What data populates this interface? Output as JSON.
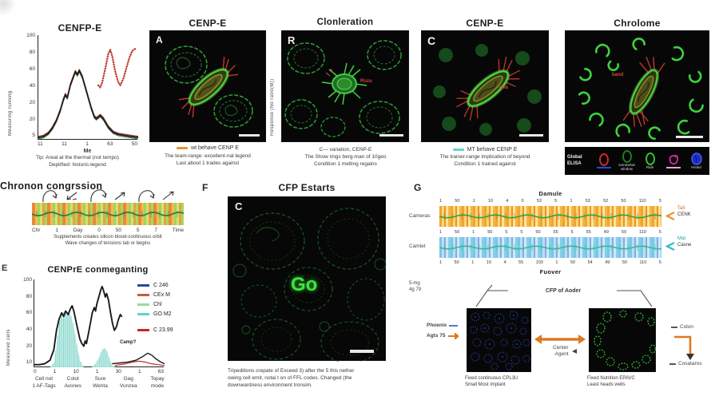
{
  "colors": {
    "panel_black": "#070707",
    "green_bright": "#3ed43e",
    "green_dim": "#1d7a2a",
    "red": "#c0392b",
    "orange_accent": "#e8952e",
    "cyan_accent": "#5fd8cc",
    "dapi_blue": "#2b4fd4",
    "arrow_orange": "#e07820"
  },
  "chart1": {
    "title": "CENFP-E",
    "ylabel": "Measuring running",
    "xlabel": "Me",
    "caption1": "Tip: Areal at the thermal (not tempo)",
    "caption2": "Deptified: historic-legend"
  },
  "panelA": {
    "title": "CENP-E",
    "corner": "A",
    "legend_label": "wt behave CENP E",
    "caption1": "The team-range: excellent-nal legend",
    "caption2": "Last about 1 trades against"
  },
  "panelR": {
    "title": "Clonleration",
    "corner": "R",
    "side_label": "Response (No ratio(M))",
    "inner_label": "Roza",
    "caption1": "C— variation, CENP-E",
    "caption2": "The Show rings berg-man of 10geo",
    "caption3": "Condition 1 melting regains"
  },
  "panelC": {
    "title": "CENP-E",
    "corner": "C",
    "legend_label": "MT behave CENP E",
    "inner_label": "Idea",
    "caption1": "The trainer-range implication of beyond",
    "caption2": "Condition 1 trained against"
  },
  "panelK": {
    "title": "Chrolome",
    "inner_label": "band",
    "legend_text1": "Global",
    "legend_text2": "ELISA",
    "item2_label1": "somewhat",
    "item2_label2": "window",
    "item3_label": "Ride",
    "item5_label": "Histed"
  },
  "congression": {
    "heading": "Chronon congrssion",
    "ticks": [
      "Chr",
      "1",
      "Day",
      "0",
      "50",
      "5",
      "7",
      "Time"
    ],
    "caption1": "Supplements creates silicon blood-continuous orbit",
    "caption2": "Wave changes of tensions tab or begins",
    "panel_letter": "E"
  },
  "panelF": {
    "letter": "F",
    "title": "CFP Estarts",
    "corner": "C",
    "center_text": "Go",
    "caption1": "Tripeditions crepate of Exceed 3) after the 5 this nether",
    "caption2": "owing cell emit, notai t on of FFL codes. Changed (the",
    "caption3": "downwardness environment tronsim."
  },
  "panelG": {
    "letter": "G",
    "top_title": "Damule",
    "bottom_title": "Fuover",
    "row1_label": "Cameras",
    "row2_label": "Camlet",
    "numbers_top": [
      "1",
      "50",
      "1",
      "10",
      "4",
      "0",
      "53",
      "5",
      "1",
      "53",
      "52",
      "50",
      "110",
      "5"
    ],
    "numbers_mid": [
      "1",
      "50",
      "1",
      "50",
      "5",
      "5",
      "50",
      "55",
      "5",
      "55",
      "49",
      "50",
      "110",
      "5"
    ],
    "numbers_bottom": [
      "1",
      "50",
      "1",
      "10",
      "4",
      "55",
      "103",
      "1",
      "50",
      "54",
      "49",
      "50",
      "110",
      "5"
    ],
    "arrow1_line1": "Tail",
    "arrow1_line2": "CENK",
    "arrow2_line1": "Mat",
    "arrow2_line2": "Casne",
    "note_line1": "5-mg",
    "note_line2": "4g 79",
    "bracket_label": "CFP of Aoder",
    "left_img_label1": "Phoenix",
    "left_img_label2": "Agts 75",
    "mid_label1": "Center",
    "mid_label2": "Agent",
    "right_label1": "Colon",
    "right_label2": "Cosataros",
    "left_caption1": "Fixed continuous CPL3U",
    "left_caption2": "Small Most implant",
    "right_caption1": "Fixed Nutrition EPAVC",
    "right_caption2": "Least heads wells"
  },
  "chart_data": [
    {
      "type": "line",
      "title": "CENFP-E",
      "xlabel": "Me",
      "ylabel": "Measuring running",
      "ylim": [
        0,
        100
      ],
      "yticks": [
        "100",
        "80",
        "60",
        "40",
        "20",
        "20",
        "5"
      ],
      "xticks": [
        "11",
        "11",
        "1",
        "63",
        "50"
      ],
      "shared_main": [
        [
          0.0,
          0.02
        ],
        [
          0.05,
          0.03
        ],
        [
          0.1,
          0.06
        ],
        [
          0.14,
          0.11
        ],
        [
          0.18,
          0.18
        ],
        [
          0.22,
          0.28
        ],
        [
          0.25,
          0.38
        ],
        [
          0.27,
          0.43
        ],
        [
          0.29,
          0.4
        ],
        [
          0.32,
          0.52
        ],
        [
          0.35,
          0.6
        ],
        [
          0.37,
          0.65
        ],
        [
          0.39,
          0.62
        ],
        [
          0.41,
          0.66
        ],
        [
          0.44,
          0.6
        ],
        [
          0.47,
          0.5
        ],
        [
          0.5,
          0.4
        ],
        [
          0.53,
          0.3
        ],
        [
          0.56,
          0.22
        ],
        [
          0.58,
          0.2
        ],
        [
          0.62,
          0.23
        ],
        [
          0.65,
          0.2
        ],
        [
          0.7,
          0.12
        ],
        [
          0.75,
          0.07
        ],
        [
          0.8,
          0.05
        ],
        [
          0.86,
          0.04
        ],
        [
          0.93,
          0.03
        ],
        [
          1.0,
          0.02
        ]
      ],
      "zigzag": [
        [
          0.6,
          0.52
        ],
        [
          0.62,
          0.5
        ],
        [
          0.64,
          0.55
        ],
        [
          0.67,
          0.68
        ],
        [
          0.7,
          0.82
        ],
        [
          0.72,
          0.86
        ],
        [
          0.74,
          0.8
        ],
        [
          0.77,
          0.65
        ],
        [
          0.8,
          0.55
        ],
        [
          0.82,
          0.52
        ],
        [
          0.85,
          0.58
        ],
        [
          0.88,
          0.68
        ],
        [
          0.91,
          0.78
        ],
        [
          0.94,
          0.85
        ],
        [
          0.97,
          0.87
        ]
      ],
      "series": [
        {
          "name": "rep-red",
          "color": "#b03030",
          "width": 1.3,
          "src": "shared_main",
          "dy": 0.012
        },
        {
          "name": "rep-green",
          "color": "#2e7d32",
          "width": 1.1,
          "src": "shared_main",
          "dy": -0.012
        },
        {
          "name": "rep-blue",
          "color": "#27408b",
          "width": 1.1,
          "src": "shared_main",
          "dy": 0.004
        },
        {
          "name": "wt-black",
          "color": "#1a1a1a",
          "width": 1.5,
          "src": "shared_main",
          "dy": 0
        },
        {
          "name": "zigzag-red",
          "color": "#c0392b",
          "width": 2.3,
          "src": "zigzag",
          "dy": 0,
          "dash": "0.5 2.6"
        }
      ]
    },
    {
      "type": "line-area",
      "title": "CENPrE conmeganting",
      "ylabel": "Measured cells",
      "ylim": [
        0,
        100
      ],
      "yticks": [
        "100",
        "80",
        "60",
        "40",
        "20",
        "10"
      ],
      "xticks": [
        "0",
        "1",
        "10",
        "1",
        "30",
        "1",
        "63"
      ],
      "group_labels": [
        [
          "Cell not",
          "1 AF-Tags"
        ],
        [
          "Colot",
          "Avones"
        ],
        [
          "Sure",
          "Wenta"
        ],
        [
          "Gag",
          "Vunzea"
        ],
        [
          "Topay",
          "mode"
        ]
      ],
      "legend": [
        {
          "label": "C 246",
          "color": "#1f4e9e"
        },
        {
          "label": "CEx M",
          "color": "#c0623a"
        },
        {
          "label": "Chl",
          "color": "#9ad8ae"
        },
        {
          "label": "GO M2",
          "color": "#5bd6c8"
        },
        {
          "label": "C 23.99",
          "color": "#cc2222"
        }
      ],
      "annotation": "Camp?",
      "areas": [
        {
          "color": "#c3ece7",
          "line": "#6fcfc3",
          "points": [
            [
              0.12,
              0.0
            ],
            [
              0.15,
              0.05
            ],
            [
              0.17,
              0.25
            ],
            [
              0.19,
              0.5
            ],
            [
              0.21,
              0.6
            ],
            [
              0.23,
              0.63
            ],
            [
              0.25,
              0.6
            ],
            [
              0.27,
              0.63
            ],
            [
              0.29,
              0.55
            ],
            [
              0.31,
              0.4
            ],
            [
              0.33,
              0.22
            ],
            [
              0.35,
              0.08
            ],
            [
              0.37,
              0.02
            ],
            [
              0.38,
              0.0
            ]
          ]
        },
        {
          "color": "#c3ece7",
          "line": "#6fcfc3",
          "points": [
            [
              0.44,
              0.0
            ],
            [
              0.47,
              0.04
            ],
            [
              0.5,
              0.12
            ],
            [
              0.52,
              0.2
            ],
            [
              0.54,
              0.22
            ],
            [
              0.56,
              0.18
            ],
            [
              0.58,
              0.08
            ],
            [
              0.6,
              0.02
            ],
            [
              0.62,
              0.0
            ]
          ]
        }
      ],
      "main": [
        [
          0,
          0.03
        ],
        [
          0.04,
          0.03
        ],
        [
          0.08,
          0.04
        ],
        [
          0.12,
          0.08
        ],
        [
          0.15,
          0.2
        ],
        [
          0.17,
          0.42
        ],
        [
          0.19,
          0.55
        ],
        [
          0.21,
          0.62
        ],
        [
          0.225,
          0.58
        ],
        [
          0.24,
          0.64
        ],
        [
          0.26,
          0.6
        ],
        [
          0.275,
          0.66
        ],
        [
          0.29,
          0.7
        ],
        [
          0.305,
          0.63
        ],
        [
          0.32,
          0.52
        ],
        [
          0.335,
          0.42
        ],
        [
          0.35,
          0.32
        ],
        [
          0.365,
          0.27
        ],
        [
          0.38,
          0.24
        ],
        [
          0.39,
          0.3
        ],
        [
          0.4,
          0.27
        ],
        [
          0.415,
          0.38
        ],
        [
          0.43,
          0.5
        ],
        [
          0.445,
          0.62
        ],
        [
          0.46,
          0.68
        ],
        [
          0.47,
          0.64
        ],
        [
          0.48,
          0.72
        ],
        [
          0.495,
          0.8
        ],
        [
          0.51,
          0.88
        ],
        [
          0.52,
          0.92
        ],
        [
          0.53,
          0.88
        ],
        [
          0.545,
          0.8
        ],
        [
          0.555,
          0.84
        ],
        [
          0.57,
          0.76
        ],
        [
          0.585,
          0.62
        ],
        [
          0.6,
          0.5
        ],
        [
          0.615,
          0.42
        ],
        [
          0.63,
          0.46
        ],
        [
          0.645,
          0.54
        ],
        [
          0.66,
          0.6
        ],
        [
          0.67,
          0.58
        ]
      ],
      "tail": [
        [
          0.6,
          0.04
        ],
        [
          0.66,
          0.05
        ],
        [
          0.72,
          0.06
        ],
        [
          0.78,
          0.08
        ],
        [
          0.83,
          0.12
        ],
        [
          0.87,
          0.16
        ],
        [
          0.9,
          0.14
        ],
        [
          0.93,
          0.1
        ],
        [
          0.97,
          0.06
        ],
        [
          1,
          0.04
        ]
      ],
      "red": [
        [
          0.62,
          0.02
        ],
        [
          0.7,
          0.04
        ],
        [
          0.76,
          0.06
        ],
        [
          0.8,
          0.07
        ],
        [
          0.85,
          0.06
        ],
        [
          0.9,
          0.04
        ],
        [
          0.95,
          0.03
        ],
        [
          1,
          0.02
        ]
      ],
      "series": [
        {
          "name": "black-main",
          "color": "#1a1a1a",
          "width": 1.9,
          "src": "main"
        },
        {
          "name": "black-tail",
          "color": "#1a1a1a",
          "width": 1.4,
          "src": "tail"
        },
        {
          "name": "red-low",
          "color": "#cc2222",
          "width": 1.2,
          "src": "red"
        }
      ]
    }
  ]
}
